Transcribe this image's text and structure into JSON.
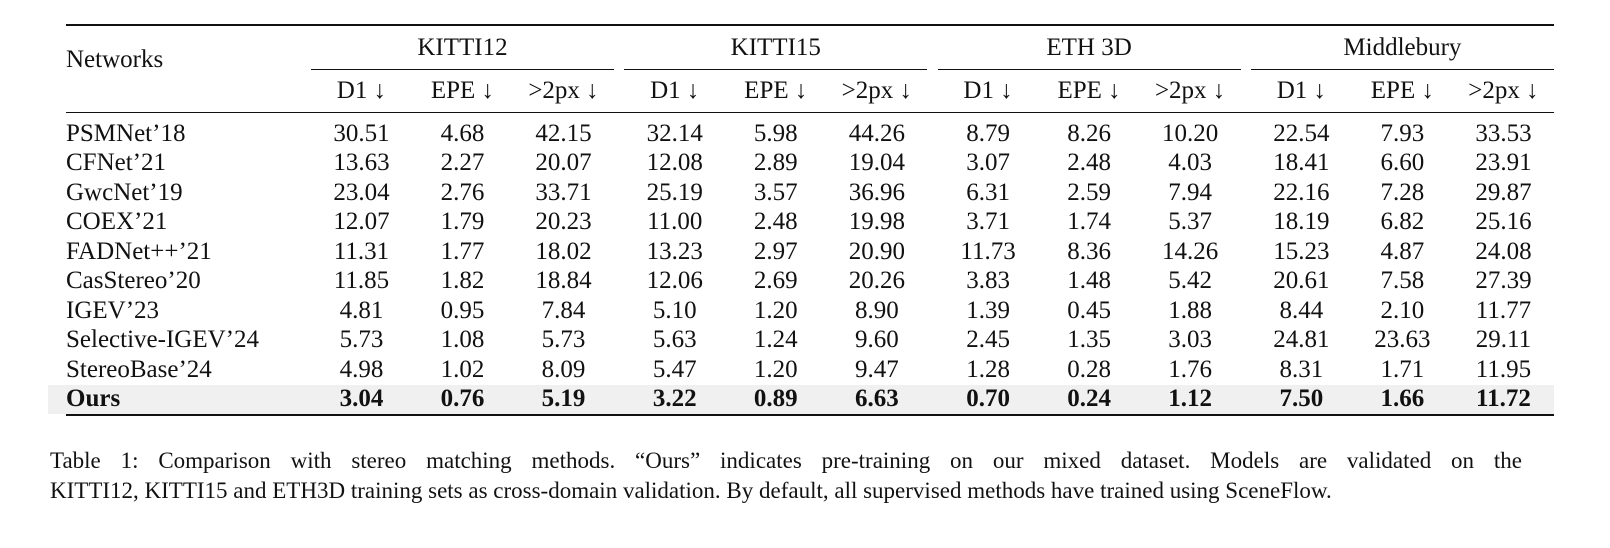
{
  "table": {
    "name_header": "Networks",
    "groups": [
      "KITTI12",
      "KITTI15",
      "ETH 3D",
      "Middlebury"
    ],
    "metrics": [
      "D1 ↓",
      "EPE ↓",
      ">2px ↓"
    ],
    "rows": [
      {
        "name": "PSMNet’18",
        "values": [
          "30.51",
          "4.68",
          "42.15",
          "32.14",
          "5.98",
          "44.26",
          "8.79",
          "8.26",
          "10.20",
          "22.54",
          "7.93",
          "33.53"
        ]
      },
      {
        "name": "CFNet’21",
        "values": [
          "13.63",
          "2.27",
          "20.07",
          "12.08",
          "2.89",
          "19.04",
          "3.07",
          "2.48",
          "4.03",
          "18.41",
          "6.60",
          "23.91"
        ]
      },
      {
        "name": "GwcNet’19",
        "values": [
          "23.04",
          "2.76",
          "33.71",
          "25.19",
          "3.57",
          "36.96",
          "6.31",
          "2.59",
          "7.94",
          "22.16",
          "7.28",
          "29.87"
        ]
      },
      {
        "name": "COEX’21",
        "values": [
          "12.07",
          "1.79",
          "20.23",
          "11.00",
          "2.48",
          "19.98",
          "3.71",
          "1.74",
          "5.37",
          "18.19",
          "6.82",
          "25.16"
        ]
      },
      {
        "name": "FADNet++’21",
        "values": [
          "11.31",
          "1.77",
          "18.02",
          "13.23",
          "2.97",
          "20.90",
          "11.73",
          "8.36",
          "14.26",
          "15.23",
          "4.87",
          "24.08"
        ]
      },
      {
        "name": "CasStereo’20",
        "values": [
          "11.85",
          "1.82",
          "18.84",
          "12.06",
          "2.69",
          "20.26",
          "3.83",
          "1.48",
          "5.42",
          "20.61",
          "7.58",
          "27.39"
        ]
      },
      {
        "name": "IGEV’23",
        "values": [
          "4.81",
          "0.95",
          "7.84",
          "5.10",
          "1.20",
          "8.90",
          "1.39",
          "0.45",
          "1.88",
          "8.44",
          "2.10",
          "11.77"
        ]
      },
      {
        "name": "Selective-IGEV’24",
        "values": [
          "5.73",
          "1.08",
          "5.73",
          "5.63",
          "1.24",
          "9.60",
          "2.45",
          "1.35",
          "3.03",
          "24.81",
          "23.63",
          "29.11"
        ]
      },
      {
        "name": "StereoBase’24",
        "values": [
          "4.98",
          "1.02",
          "8.09",
          "5.47",
          "1.20",
          "9.47",
          "1.28",
          "0.28",
          "1.76",
          "8.31",
          "1.71",
          "11.95"
        ]
      },
      {
        "name": "Ours",
        "values": [
          "3.04",
          "0.76",
          "5.19",
          "3.22",
          "0.89",
          "6.63",
          "0.70",
          "0.24",
          "1.12",
          "7.50",
          "1.66",
          "11.72"
        ]
      }
    ]
  },
  "caption": {
    "line1": "Table 1: Comparison with stereo matching methods. “Ours” indicates pre-training on our mixed dataset. Models are validated on the",
    "line2": "KITTI12, KITTI15 and ETH3D training sets as cross-domain validation. By default, all supervised methods have trained using SceneFlow."
  }
}
